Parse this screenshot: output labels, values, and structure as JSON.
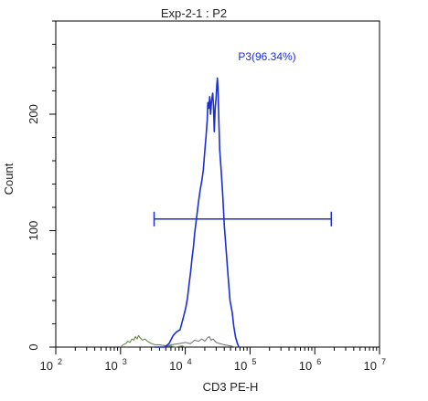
{
  "chart_data": {
    "type": "histogram",
    "title": "Exp-2-1 : P2",
    "xlabel": "CD3 PE-H",
    "ylabel": "Count",
    "x_scale": "log",
    "x_range": [
      100,
      10000000
    ],
    "y_range": [
      0,
      280
    ],
    "x_ticks": [
      {
        "value": 100,
        "base": "10",
        "exp": "2"
      },
      {
        "value": 1000,
        "base": "10",
        "exp": "3"
      },
      {
        "value": 10000,
        "base": "10",
        "exp": "4"
      },
      {
        "value": 100000,
        "base": "10",
        "exp": "5"
      },
      {
        "value": 1000000,
        "base": "10",
        "exp": "6"
      },
      {
        "value": 10000000,
        "base": "10",
        "exp": "7"
      }
    ],
    "y_ticks": [
      0,
      100,
      200
    ],
    "gate": {
      "name": "P3",
      "label": "P3(96.34%)",
      "x_start": 3300,
      "x_end": 1800000,
      "y": 110,
      "color": "#1a2fd6"
    },
    "series": [
      {
        "color": "#1a2fd6",
        "points": [
          [
            3300,
            0
          ],
          [
            4800,
            0
          ],
          [
            5600,
            3
          ],
          [
            6100,
            7
          ],
          [
            6500,
            10
          ],
          [
            7300,
            13
          ],
          [
            8300,
            15
          ],
          [
            9300,
            25
          ],
          [
            10200,
            34
          ],
          [
            10800,
            42
          ],
          [
            11500,
            55
          ],
          [
            12100,
            65
          ],
          [
            12800,
            78
          ],
          [
            13300,
            85
          ],
          [
            14000,
            98
          ],
          [
            15000,
            112
          ],
          [
            16000,
            125
          ],
          [
            17000,
            135
          ],
          [
            18000,
            143
          ],
          [
            19000,
            152
          ],
          [
            20000,
            168
          ],
          [
            21000,
            182
          ],
          [
            21800,
            195
          ],
          [
            22300,
            210
          ],
          [
            23000,
            205
          ],
          [
            23800,
            215
          ],
          [
            24500,
            200
          ],
          [
            25500,
            212
          ],
          [
            26500,
            218
          ],
          [
            27200,
            208
          ],
          [
            28000,
            185
          ],
          [
            29000,
            205
          ],
          [
            30000,
            215
          ],
          [
            30700,
            225
          ],
          [
            31300,
            231
          ],
          [
            32000,
            222
          ],
          [
            33000,
            195
          ],
          [
            34000,
            170
          ],
          [
            36000,
            150
          ],
          [
            38000,
            130
          ],
          [
            40000,
            105
          ],
          [
            43000,
            82
          ],
          [
            46000,
            60
          ],
          [
            49000,
            40
          ],
          [
            53000,
            30
          ],
          [
            56000,
            18
          ],
          [
            60000,
            8
          ],
          [
            64000,
            3
          ],
          [
            67000,
            0
          ]
        ]
      },
      {
        "color": "#6b8a4f",
        "points": [
          [
            1000,
            0
          ],
          [
            1100,
            2
          ],
          [
            1200,
            3
          ],
          [
            1300,
            5
          ],
          [
            1400,
            4
          ],
          [
            1500,
            7
          ],
          [
            1600,
            6
          ],
          [
            1700,
            9
          ],
          [
            1800,
            7
          ],
          [
            1900,
            10
          ],
          [
            2000,
            8
          ],
          [
            2200,
            6
          ],
          [
            2400,
            7
          ],
          [
            2600,
            5
          ],
          [
            2800,
            4
          ],
          [
            3000,
            3
          ],
          [
            3400,
            2
          ],
          [
            4000,
            2
          ],
          [
            5000,
            1
          ],
          [
            6000,
            1
          ],
          [
            7000,
            0
          ],
          [
            9000,
            1
          ],
          [
            10000,
            0
          ]
        ]
      },
      {
        "color": "#7a7a7a",
        "points": [
          [
            3300,
            0
          ],
          [
            4800,
            0
          ],
          [
            6000,
            2
          ],
          [
            8000,
            3
          ],
          [
            10000,
            4
          ],
          [
            12000,
            3
          ],
          [
            14000,
            6
          ],
          [
            16000,
            5
          ],
          [
            18000,
            7
          ],
          [
            20000,
            5
          ],
          [
            22000,
            8
          ],
          [
            23500,
            9
          ],
          [
            25000,
            6
          ],
          [
            27000,
            7
          ],
          [
            30000,
            4
          ],
          [
            34000,
            3
          ],
          [
            40000,
            2
          ],
          [
            50000,
            1
          ],
          [
            60000,
            0
          ]
        ]
      }
    ],
    "colors": {
      "axis": "#000000",
      "text": "#222222"
    }
  }
}
